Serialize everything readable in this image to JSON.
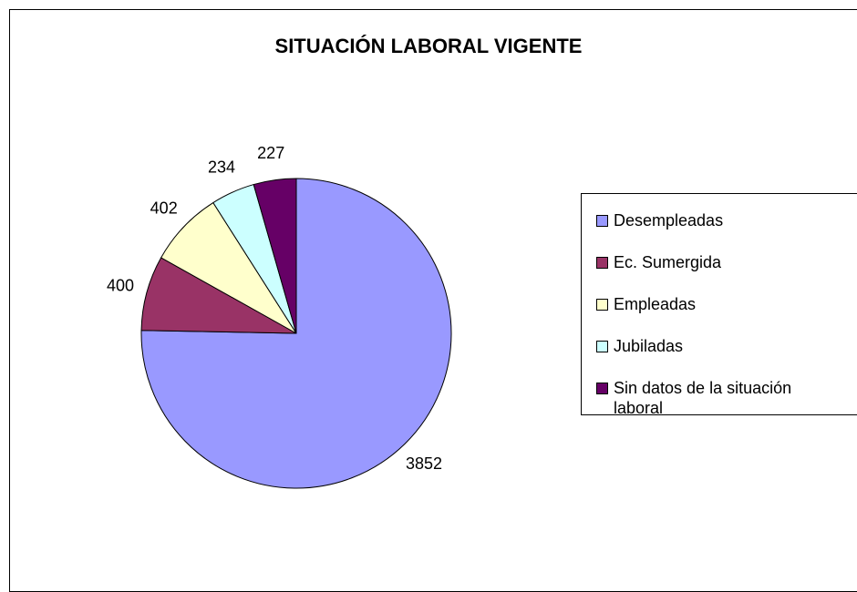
{
  "chart_data": {
    "type": "pie",
    "title": "SITUACIÓN LABORAL VIGENTE",
    "categories": [
      "Desempleadas",
      "Ec. Sumergida",
      "Empleadas",
      "Jubiladas",
      "Sin datos de la situación laboral"
    ],
    "values": [
      3852,
      400,
      402,
      234,
      227
    ],
    "colors": [
      "#9999ff",
      "#993366",
      "#ffffcc",
      "#ccffff",
      "#660066"
    ]
  }
}
